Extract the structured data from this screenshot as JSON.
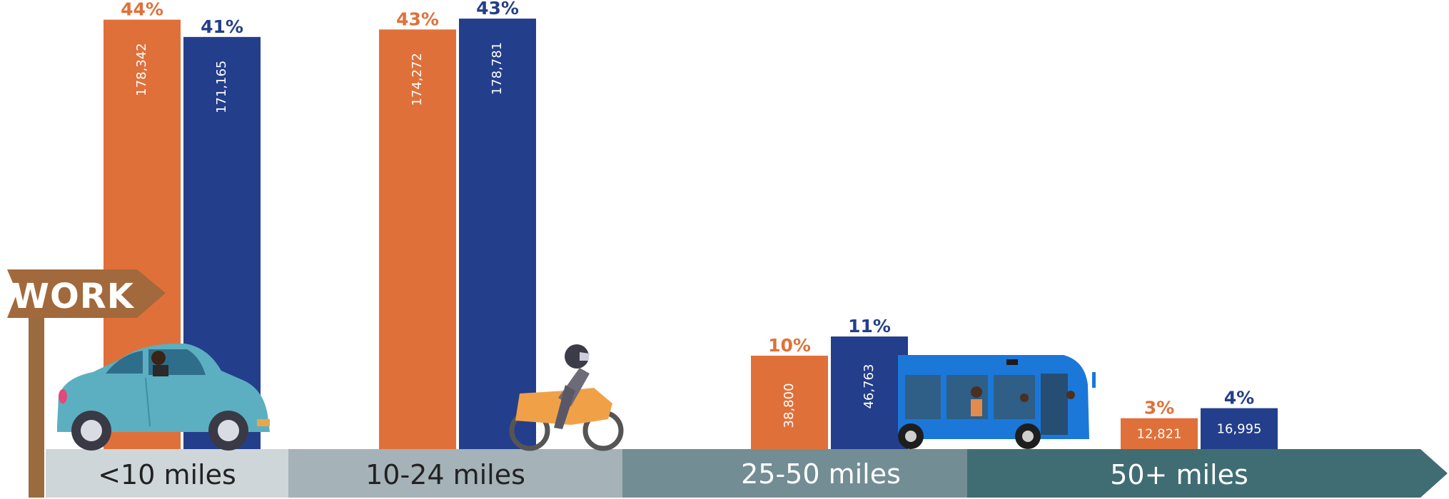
{
  "chart_data": {
    "type": "bar",
    "categories": [
      "<10 miles",
      "10-24 miles",
      "25-50 miles",
      "50+ miles"
    ],
    "series": [
      {
        "values": [
          178342,
          174272,
          38800,
          12821
        ],
        "labels": [
          "178,342",
          "174,272",
          "38,800",
          "12,821"
        ],
        "percents": [
          "44%",
          "43%",
          "10%",
          "3%"
        ],
        "color": "#E0703A"
      },
      {
        "values": [
          171165,
          178781,
          46763,
          16995
        ],
        "labels": [
          "171,165",
          "178,781",
          "46,763",
          "16,995"
        ],
        "percents": [
          "41%",
          "43%",
          "11%",
          "4%"
        ],
        "color": "#233E8B"
      }
    ],
    "title": "",
    "xlabel": "",
    "ylabel": "",
    "grid": false,
    "legend": "none",
    "segment_colors": [
      "#CFD6DA",
      "#A5B2B8",
      "#738D94",
      "#3F6D73"
    ],
    "segment_text_colors": [
      "#222222",
      "#222222",
      "#FFFFFF",
      "#FFFFFF"
    ]
  },
  "illustrations": {
    "sign_text": "WORK",
    "icons": [
      "car-icon",
      "motorcycle-icon",
      "bus-icon",
      "signpost-icon"
    ]
  }
}
